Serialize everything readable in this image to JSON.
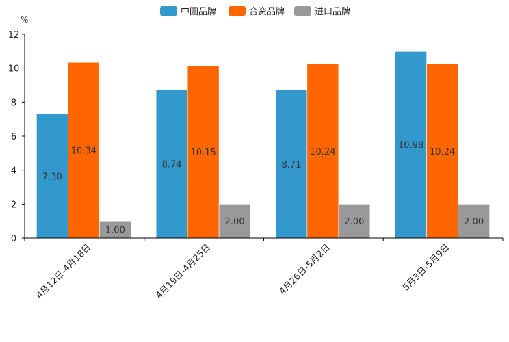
{
  "chart_data": {
    "type": "bar",
    "title": "",
    "xlabel": "",
    "ylabel": "%",
    "ylim": [
      0,
      12
    ],
    "yticks": [
      0,
      2,
      4,
      6,
      8,
      10,
      12
    ],
    "categories": [
      "4月12日-4月18日",
      "4月19日-4月25日",
      "4月26日-5月2日",
      "5月3日-5月9日"
    ],
    "series": [
      {
        "name": "中国品牌",
        "color": "#3399cc",
        "values": [
          7.3,
          8.74,
          8.71,
          10.98
        ],
        "labels": [
          "7.30",
          "8.74",
          "8.71",
          "10.98"
        ]
      },
      {
        "name": "合资品牌",
        "color": "#ff6600",
        "values": [
          10.34,
          10.15,
          10.24,
          10.24
        ],
        "labels": [
          "10.34",
          "10.15",
          "10.24",
          "10.24"
        ]
      },
      {
        "name": "进口品牌",
        "color": "#999999",
        "values": [
          1.0,
          2.0,
          2.0,
          2.0
        ],
        "labels": [
          "1.00",
          "2.00",
          "2.00",
          "2.00"
        ]
      }
    ],
    "legend_position": "top-center",
    "grid": false
  }
}
